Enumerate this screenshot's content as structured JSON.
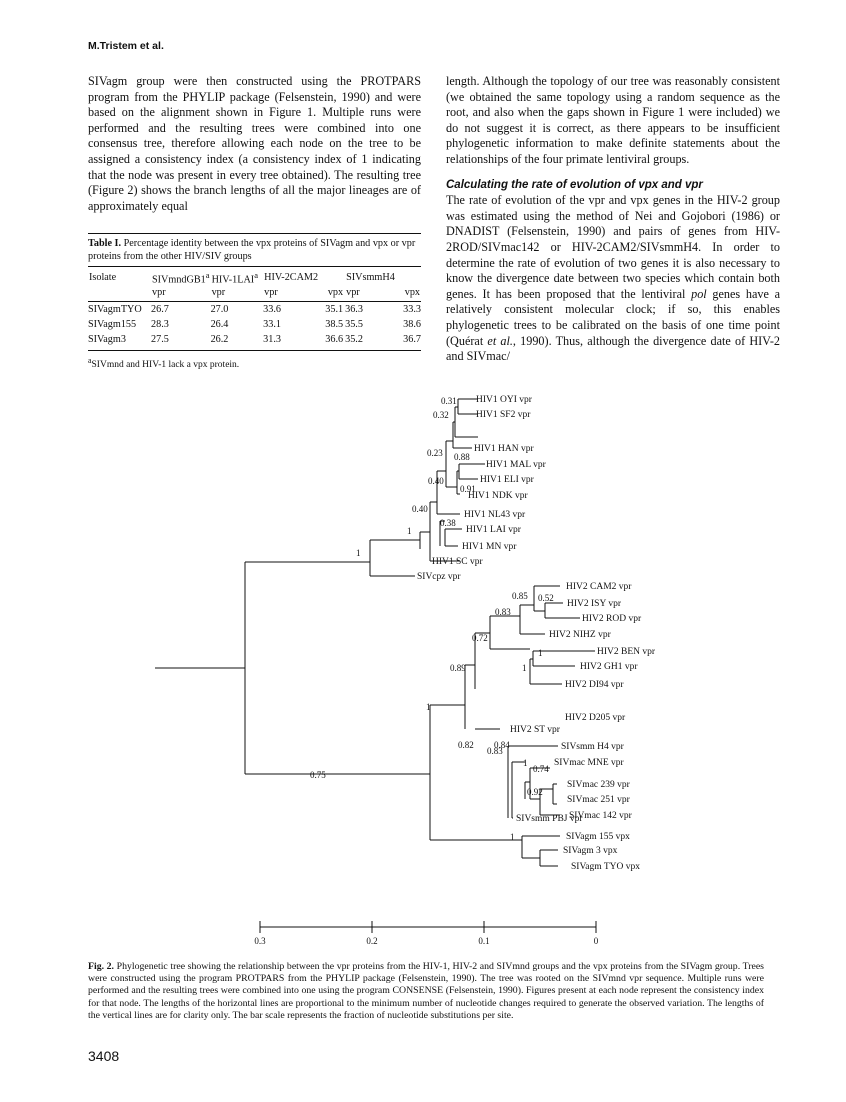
{
  "running_head": "M.Tristem et al.",
  "left_column": {
    "p1": "SIVagm group were then constructed using the PROTPARS program from the PHYLIP package (Felsenstein, 1990) and were based on the alignment shown in Figure 1. Multiple runs were performed and the resulting trees were combined into one consensus tree, therefore allowing each node on the tree to be assigned a consistency index (a consistency index of 1 indicating that the node was present in every tree obtained). The resulting tree (Figure 2) shows the branch lengths of all the major lineages are of approximately equal"
  },
  "right_column": {
    "p1": "length. Although the topology of our tree was reasonably consistent (we obtained the same topology using a random sequence as the root, and also when the gaps shown in Figure 1 were included) we do not suggest it is correct, as there appears to be insufficient phylogenetic information to make definite statements about the relationships of the four primate lentiviral groups.",
    "heading": "Calculating the rate of evolution of vpx and vpr",
    "p2_a": "The rate of evolution of the vpr and vpx genes in the HIV-2 group was estimated using the method of Nei and Gojobori (1986) or DNADIST (Felsenstein, 1990) and pairs of genes from HIV-2ROD/SIVmac142 or HIV-2CAM2/SIVsmmH4. In order to determine the rate of evolution of two genes it is also necessary to know the divergence date between two species which contain both genes. It has been proposed that the lentiviral ",
    "p2_pol": "pol",
    "p2_b": " genes have a relatively consistent molecular clock; if so, this enables phylogenetic trees to be calibrated on the basis of one time point (Quérat ",
    "p2_etal": "et al.",
    "p2_c": ", 1990). Thus, although the divergence date of HIV-2 and SIVmac/"
  },
  "table": {
    "label": "Table I.",
    "caption": "Percentage identity between the vpx proteins of SIVagm and vpx or vpr proteins from the other HIV/SIV groups",
    "col_isolate": "Isolate",
    "col_mnd": "SIVmndGB1",
    "col_lai": "HIV-1LAI",
    "col_cam2": "HIV-2CAM2",
    "col_smm": "SIVsmmH4",
    "sup_a": "a",
    "vpr": "vpr",
    "vpx": "vpx",
    "rows": [
      {
        "isolate": "SIVagmTYO",
        "mnd": "26.7",
        "lai": "27.0",
        "cam_vpr": "33.6",
        "cam_vpx": "35.1",
        "smm_vpr": "36.3",
        "smm_vpx": "33.3"
      },
      {
        "isolate": "SIVagm155",
        "mnd": "28.3",
        "lai": "26.4",
        "cam_vpr": "33.1",
        "cam_vpx": "38.5",
        "smm_vpr": "35.5",
        "smm_vpx": "38.6"
      },
      {
        "isolate": "SIVagm3",
        "mnd": "27.5",
        "lai": "26.2",
        "cam_vpr": "31.3",
        "cam_vpx": "36.6",
        "smm_vpr": "35.2",
        "smm_vpx": "36.7"
      }
    ],
    "footnote": "SIVmnd and HIV-1 lack a vpx protein."
  },
  "tree": {
    "leaves": [
      "HIV1 OYI vpr",
      "HIV1 SF2 vpr",
      "HIV1 HAN vpr",
      "HIV1 MAL vpr",
      "HIV1 ELI vpr",
      "HIV1 NDK vpr",
      "HIV1 NL43 vpr",
      "HIV1 LAI vpr",
      "HIV1 MN vpr",
      "HIV1 SC vpr",
      "SIVcpz vpr",
      "HIV2 CAM2 vpr",
      "HIV2 ISY vpr",
      "HIV2 ROD vpr",
      "HIV2 NIHZ vpr",
      "HIV2 BEN vpr",
      "HIV2 GH1 vpr",
      "HIV2 DI94 vpr",
      "HIV2 ST vpr",
      "HIV2 D205 vpr",
      "SIVsmm H4 vpr",
      "SIVmac MNE vpr",
      "SIVmac 239 vpr",
      "SIVmac 251 vpr",
      "SIVmac 142 vpr",
      "SIVsmm PBJ vpr",
      "SIVagm 155 vpx",
      "SIVagm 3 vpx",
      "SIVagm TYO vpx"
    ],
    "node_values": [
      "0.31",
      "0.32",
      "0.23",
      "0.88",
      "0.91",
      "0.40",
      "0.40",
      "0.38",
      "1",
      "1",
      "0.85",
      "0.52",
      "0.83",
      "0.72",
      "1",
      "0.89",
      "1",
      "0.82",
      "0.84",
      "1",
      "0.74",
      "0.83",
      "0.92",
      "1",
      "1",
      "0.75"
    ],
    "scale_ticks": [
      "0.3",
      "0.2",
      "0.1",
      "0"
    ]
  },
  "caption": {
    "label": "Fig. 2.",
    "text": "Phylogenetic tree showing the relationship between the vpr proteins from the HIV-1, HIV-2 and SIVmnd groups and the vpx proteins from the SIVagm group. Trees were constructed using the program PROTPARS from the PHYLIP package (Felsenstein, 1990). The tree was rooted on the SIVmnd vpr sequence. Multiple runs were performed and the resulting trees were combined into one using the program CONSENSE (Felsenstein, 1990). Figures present at each node represent the consistency index for that node. The lengths of the horizontal lines are proportional to the minimum number of nucleotide changes required to generate the observed variation. The lengths of the vertical lines are for clarity only. The bar scale represents the fraction of nucleotide substitutions per site."
  },
  "page_number": "3408"
}
